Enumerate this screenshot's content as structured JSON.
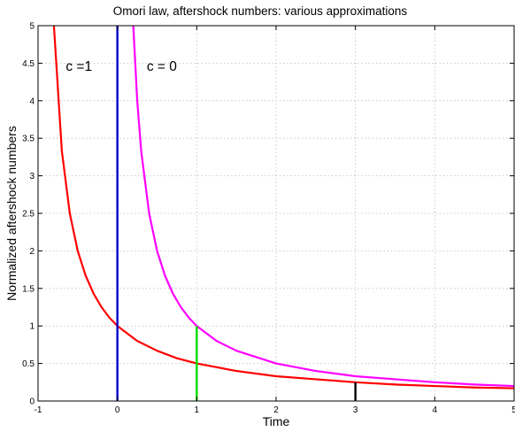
{
  "chart_data": {
    "type": "line",
    "title": "Omori law, aftershock numbers: various approximations",
    "xlabel": "Time",
    "ylabel": "Normalized aftershock numbers",
    "xlim": [
      -1,
      5
    ],
    "ylim": [
      0,
      5
    ],
    "xticks": [
      -1,
      0,
      1,
      2,
      3,
      4,
      5
    ],
    "yticks": [
      0,
      0.5,
      1,
      1.5,
      2,
      2.5,
      3,
      3.5,
      4,
      4.5,
      5
    ],
    "grid": true,
    "series": [
      {
        "name": "c =1",
        "color": "#ff0000",
        "x": [
          -0.8,
          -0.7,
          -0.6,
          -0.5,
          -0.4,
          -0.3,
          -0.2,
          -0.1,
          0,
          0.25,
          0.5,
          0.75,
          1,
          1.5,
          2,
          2.5,
          3,
          3.5,
          4,
          4.5,
          5
        ],
        "y": [
          5.0,
          3.33,
          2.5,
          2.0,
          1.67,
          1.43,
          1.25,
          1.11,
          1.0,
          0.8,
          0.67,
          0.57,
          0.5,
          0.4,
          0.33,
          0.29,
          0.25,
          0.22,
          0.2,
          0.18,
          0.17
        ]
      },
      {
        "name": "c = 0",
        "color": "#ff00ff",
        "x": [
          0.2,
          0.25,
          0.3,
          0.4,
          0.5,
          0.6,
          0.7,
          0.8,
          0.9,
          1,
          1.25,
          1.5,
          2,
          2.5,
          3,
          3.5,
          4,
          4.5,
          5
        ],
        "y": [
          5.0,
          4.0,
          3.33,
          2.5,
          2.0,
          1.67,
          1.43,
          1.25,
          1.11,
          1.0,
          0.8,
          0.67,
          0.5,
          0.4,
          0.33,
          0.29,
          0.25,
          0.22,
          0.2
        ]
      }
    ],
    "vertical_lines": [
      {
        "x": 0,
        "y0": 0,
        "y1": 5,
        "color": "#0000cc"
      },
      {
        "x": 1,
        "y0": 0,
        "y1": 1,
        "color": "#00dd00"
      },
      {
        "x": 3,
        "y0": 0,
        "y1": 0.25,
        "color": "#000000"
      }
    ],
    "annotations": [
      {
        "text": "c =1",
        "x": -0.65,
        "y": 4.4
      },
      {
        "text": "c = 0",
        "x": 0.37,
        "y": 4.4
      }
    ]
  }
}
